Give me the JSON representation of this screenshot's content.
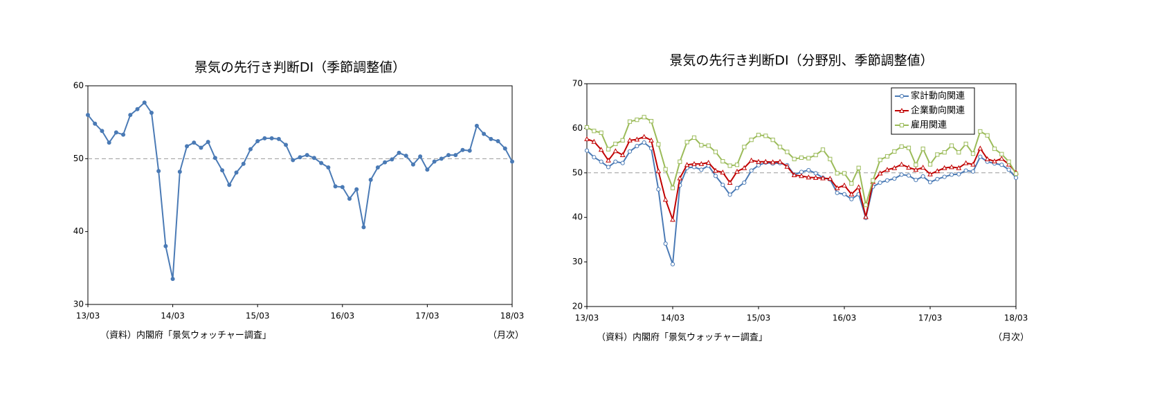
{
  "chart_data": [
    {
      "type": "line",
      "title": "景気の先行き判断DI（季節調整値）",
      "categories": [
        "13/03",
        null,
        null,
        null,
        null,
        null,
        null,
        null,
        null,
        null,
        null,
        null,
        "14/03",
        null,
        null,
        null,
        null,
        null,
        null,
        null,
        null,
        null,
        null,
        null,
        "15/03",
        null,
        null,
        null,
        null,
        null,
        null,
        null,
        null,
        null,
        null,
        null,
        "16/03",
        null,
        null,
        null,
        null,
        null,
        null,
        null,
        null,
        null,
        null,
        null,
        "17/03",
        null,
        null,
        null,
        null,
        null,
        null,
        null,
        null,
        null,
        null,
        null,
        "18/03"
      ],
      "series": [
        {
          "name": "景気の先行き判断DI",
          "color": "#4a7ab5",
          "marker": "dot",
          "values": [
            56.0,
            54.8,
            53.8,
            52.2,
            53.6,
            53.3,
            56.0,
            56.8,
            57.7,
            56.3,
            48.3,
            38.0,
            33.5,
            48.2,
            51.7,
            52.2,
            51.5,
            52.3,
            50.1,
            48.4,
            46.4,
            48.1,
            49.3,
            51.3,
            52.4,
            52.8,
            52.8,
            52.7,
            51.9,
            49.8,
            50.2,
            50.5,
            50.1,
            49.4,
            48.8,
            46.2,
            46.1,
            44.5,
            45.8,
            40.6,
            47.1,
            48.8,
            49.5,
            49.9,
            50.8,
            50.4,
            49.2,
            50.3,
            48.5,
            49.6,
            50.0,
            50.5,
            50.5,
            51.2,
            51.1,
            54.5,
            53.4,
            52.7,
            52.4,
            51.4,
            49.6
          ]
        }
      ],
      "ylim": [
        30,
        60
      ],
      "yticks": [
        30,
        40,
        50,
        60
      ],
      "reference_line": 50,
      "source": "（資料）内閣府「景気ウォッチャー調査」",
      "unit_note": "（月次）"
    },
    {
      "type": "line",
      "title": "景気の先行き判断DI（分野別、季節調整値）",
      "categories": [
        "13/03",
        null,
        null,
        null,
        null,
        null,
        null,
        null,
        null,
        null,
        null,
        null,
        "14/03",
        null,
        null,
        null,
        null,
        null,
        null,
        null,
        null,
        null,
        null,
        null,
        "15/03",
        null,
        null,
        null,
        null,
        null,
        null,
        null,
        null,
        null,
        null,
        null,
        "16/03",
        null,
        null,
        null,
        null,
        null,
        null,
        null,
        null,
        null,
        null,
        null,
        "17/03",
        null,
        null,
        null,
        null,
        null,
        null,
        null,
        null,
        null,
        null,
        null,
        "18/03"
      ],
      "series": [
        {
          "name": "家計動向関連",
          "color": "#4a7ab5",
          "marker": "circle",
          "values": [
            55.0,
            53.5,
            52.5,
            51.3,
            52.5,
            52.2,
            54.8,
            56.0,
            56.8,
            55.5,
            46.3,
            34.1,
            29.5,
            47.2,
            51.1,
            51.3,
            50.7,
            51.6,
            49.3,
            47.3,
            45.1,
            46.6,
            47.8,
            50.5,
            51.7,
            52.3,
            52.1,
            52.2,
            51.7,
            49.6,
            50.2,
            50.6,
            49.9,
            48.9,
            48.5,
            45.5,
            45.2,
            44.1,
            45.2,
            39.9,
            46.9,
            47.8,
            48.3,
            48.7,
            49.6,
            49.4,
            48.4,
            49.2,
            47.9,
            48.6,
            49.1,
            49.6,
            49.7,
            50.5,
            50.3,
            53.6,
            52.5,
            52.1,
            51.8,
            50.7,
            48.9
          ]
        },
        {
          "name": "企業動向関連",
          "color": "#c00000",
          "marker": "triangle",
          "values": [
            57.6,
            57.0,
            55.2,
            52.8,
            54.9,
            54.0,
            57.3,
            57.5,
            58.1,
            57.3,
            50.4,
            44.0,
            39.5,
            48.8,
            51.8,
            52.0,
            52.0,
            52.3,
            50.5,
            50.1,
            47.8,
            50.3,
            51.1,
            52.8,
            52.5,
            52.5,
            52.4,
            52.5,
            51.4,
            49.5,
            49.3,
            49.0,
            48.9,
            48.8,
            48.7,
            46.6,
            47.2,
            45.2,
            46.8,
            40.1,
            48.0,
            49.9,
            50.7,
            51.1,
            51.9,
            51.2,
            50.7,
            51.2,
            49.7,
            50.4,
            51.1,
            51.3,
            51.1,
            52.2,
            51.9,
            55.5,
            53.1,
            52.6,
            53.2,
            51.9,
            50.1
          ]
        },
        {
          "name": "雇用関連",
          "color": "#9bbb59",
          "marker": "square",
          "values": [
            60.2,
            59.4,
            59.0,
            55.3,
            56.5,
            57.3,
            61.5,
            61.9,
            62.5,
            61.6,
            56.4,
            50.8,
            46.6,
            52.5,
            56.9,
            57.9,
            56.2,
            56.1,
            54.7,
            52.6,
            51.6,
            51.8,
            55.8,
            57.4,
            58.5,
            58.3,
            57.4,
            55.8,
            54.7,
            53.1,
            53.4,
            53.3,
            54.0,
            55.2,
            53.1,
            49.9,
            49.9,
            47.6,
            51.1,
            42.8,
            48.3,
            52.9,
            53.7,
            54.8,
            55.9,
            55.6,
            51.8,
            55.4,
            51.9,
            54.1,
            54.6,
            56.1,
            54.6,
            56.5,
            54.3,
            59.3,
            58.4,
            55.4,
            54.2,
            52.5,
            49.8
          ]
        }
      ],
      "ylim": [
        20,
        70
      ],
      "yticks": [
        20,
        30,
        40,
        50,
        60,
        70
      ],
      "reference_line": 50,
      "legend": "top-right",
      "source": "（資料）内閣府「景気ウォッチャー調査」",
      "unit_note": "（月次）"
    }
  ]
}
